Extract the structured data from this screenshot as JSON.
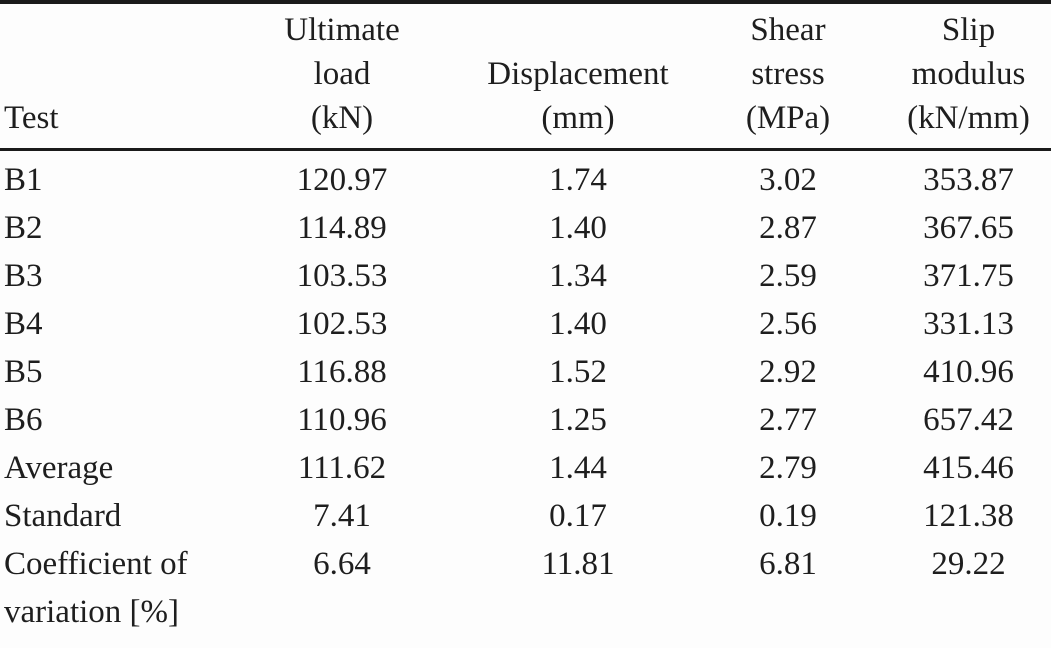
{
  "page": {
    "background": "#fdfdfd",
    "text_color": "#1e1e1e",
    "rule_color": "#1b1b1b"
  },
  "table": {
    "title": "shear-test-results-table",
    "columns": [
      {
        "label": "Test"
      },
      {
        "label": "Ultimate\nload\n(kN)"
      },
      {
        "label": "Displacement\n(mm)"
      },
      {
        "label": "Shear\nstress\n(MPa)"
      },
      {
        "label": "Slip\nmodulus\n(kN/mm)"
      }
    ],
    "rows": [
      {
        "label": "B1",
        "values": [
          "120.97",
          "1.74",
          "3.02",
          "353.87"
        ]
      },
      {
        "label": "B2",
        "values": [
          "114.89",
          "1.40",
          "2.87",
          "367.65"
        ]
      },
      {
        "label": "B3",
        "values": [
          "103.53",
          "1.34",
          "2.59",
          "371.75"
        ]
      },
      {
        "label": "B4",
        "values": [
          "102.53",
          "1.40",
          "2.56",
          "331.13"
        ]
      },
      {
        "label": "B5",
        "values": [
          "116.88",
          "1.52",
          "2.92",
          "410.96"
        ]
      },
      {
        "label": "B6",
        "values": [
          "110.96",
          "1.25",
          "2.77",
          "657.42"
        ]
      },
      {
        "label": "Average",
        "values": [
          "111.62",
          "1.44",
          "2.79",
          "415.46"
        ]
      },
      {
        "label": "Standard",
        "values": [
          "7.41",
          "0.17",
          "0.19",
          "121.38"
        ]
      },
      {
        "label": "Coefficient of\nvariation [%]",
        "values": [
          "6.64",
          "11.81",
          "6.81",
          "29.22"
        ]
      }
    ]
  }
}
